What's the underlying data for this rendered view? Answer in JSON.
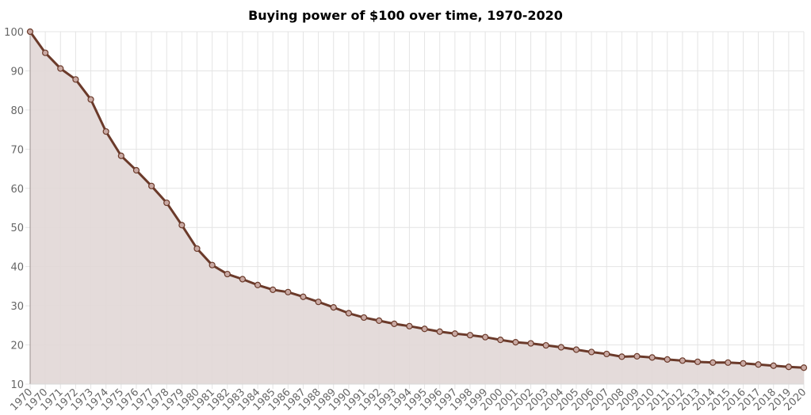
{
  "chart_data": {
    "type": "area",
    "title": "Buying power of $100 over time, 1970-2020",
    "xlabel": "",
    "ylabel": "",
    "ylim": [
      10,
      100
    ],
    "yticks": [
      10,
      20,
      30,
      40,
      50,
      60,
      70,
      80,
      90,
      100
    ],
    "grid": true,
    "categories": [
      "1970",
      "1970",
      "1971",
      "1972",
      "1973",
      "1974",
      "1975",
      "1976",
      "1977",
      "1978",
      "1979",
      "1980",
      "1981",
      "1982",
      "1983",
      "1984",
      "1985",
      "1986",
      "1987",
      "1988",
      "1989",
      "1990",
      "1991",
      "1992",
      "1993",
      "1994",
      "1995",
      "1996",
      "1997",
      "1998",
      "1999",
      "2000",
      "2001",
      "2002",
      "2003",
      "2004",
      "2005",
      "2006",
      "2007",
      "2008",
      "2009",
      "2010",
      "2011",
      "2012",
      "2013",
      "2014",
      "2015",
      "2016",
      "2017",
      "2018",
      "2019",
      "2020"
    ],
    "series": [
      {
        "name": "Buying power",
        "values": [
          100,
          94.6,
          90.6,
          87.8,
          82.7,
          74.5,
          68.3,
          64.6,
          60.6,
          56.3,
          50.6,
          44.6,
          40.4,
          38.1,
          36.8,
          35.3,
          34.1,
          33.5,
          32.3,
          31.0,
          29.6,
          28.1,
          27.0,
          26.2,
          25.4,
          24.8,
          24.1,
          23.4,
          22.9,
          22.5,
          22.0,
          21.3,
          20.7,
          20.4,
          19.9,
          19.4,
          18.8,
          18.2,
          17.7,
          17.0,
          17.1,
          16.8,
          16.3,
          16.0,
          15.7,
          15.5,
          15.5,
          15.3,
          15.0,
          14.7,
          14.4,
          14.2
        ],
        "line_color": "#6b3a2a",
        "fill_color": "#e1d7d6"
      }
    ]
  }
}
